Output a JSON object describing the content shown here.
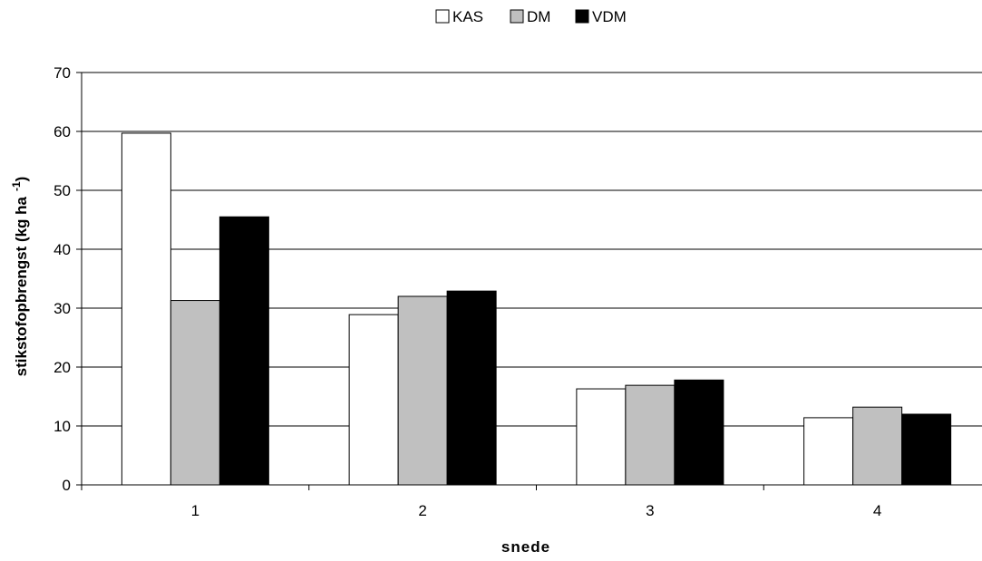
{
  "chart_data": {
    "type": "bar",
    "categories": [
      "1",
      "2",
      "3",
      "4"
    ],
    "series": [
      {
        "name": "KAS",
        "values": [
          59.7,
          28.9,
          16.3,
          11.4
        ],
        "color": "#ffffff"
      },
      {
        "name": "DM",
        "values": [
          31.3,
          32.0,
          16.9,
          13.2
        ],
        "color": "#c0c0c0"
      },
      {
        "name": "VDM",
        "values": [
          45.5,
          32.9,
          17.8,
          12.0
        ],
        "color": "#000000"
      }
    ],
    "xlabel": "snede",
    "ylabel": "stikstofopbrengst (kg ha",
    "ylabel_superscript": "-1",
    "ylabel_close": ")",
    "ylim": [
      0,
      70
    ],
    "yticks": [
      0,
      10,
      20,
      30,
      40,
      50,
      60,
      70
    ],
    "grid": true,
    "legend_position": "top-center"
  }
}
